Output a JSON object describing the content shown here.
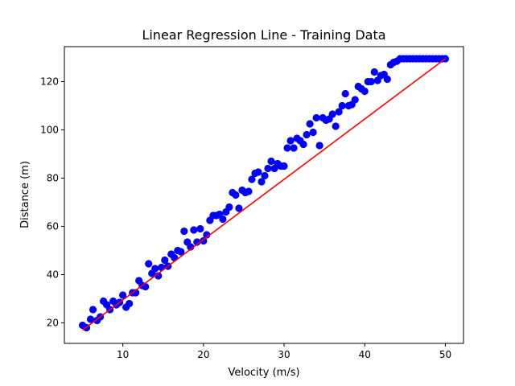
{
  "chart_data": {
    "type": "scatter",
    "title": "Linear Regression Line - Training Data",
    "xlabel": "Velocity (m/s)",
    "ylabel": "Distance (m)",
    "xlim": [
      2.75,
      52.25
    ],
    "ylim": [
      11.5,
      134.5
    ],
    "xticks": [
      10,
      20,
      30,
      40,
      50
    ],
    "yticks": [
      20,
      40,
      60,
      80,
      100,
      120
    ],
    "grid": false,
    "legend": "none",
    "colors": {
      "points": "#0000ff",
      "line": "#ff0000",
      "axes": "#000000",
      "background": "#ffffff"
    },
    "series": [
      {
        "kind": "scatter",
        "x": [
          5.0,
          5.5,
          6.0,
          6.3,
          6.8,
          7.2,
          7.6,
          8.0,
          8.4,
          8.8,
          9.2,
          9.6,
          10.0,
          10.4,
          10.8,
          11.2,
          11.6,
          12.0,
          12.4,
          12.8,
          13.2,
          13.6,
          14.0,
          14.4,
          14.8,
          15.2,
          15.6,
          16.0,
          16.4,
          16.8,
          17.2,
          17.6,
          18.0,
          18.4,
          18.8,
          19.2,
          19.6,
          20.0,
          20.4,
          20.8,
          21.2,
          21.6,
          22.0,
          22.4,
          22.8,
          23.2,
          23.6,
          24.0,
          24.4,
          24.8,
          25.2,
          25.6,
          26.0,
          26.4,
          26.8,
          27.2,
          27.6,
          28.0,
          28.4,
          28.8,
          29.2,
          29.6,
          30.0,
          30.4,
          30.8,
          31.2,
          31.6,
          32.0,
          32.4,
          32.8,
          33.2,
          33.6,
          34.0,
          34.4,
          34.8,
          35.2,
          35.6,
          36.0,
          36.4,
          36.8,
          37.2,
          37.6,
          38.0,
          38.4,
          38.8,
          39.2,
          39.6,
          40.0,
          40.4,
          40.8,
          41.2,
          41.6,
          42.0,
          42.4,
          42.8,
          43.2,
          43.6,
          44.0,
          44.4,
          44.8,
          45.2,
          45.6,
          46.0,
          46.4,
          46.8,
          47.2,
          47.6,
          48.0,
          48.4,
          48.8,
          49.2,
          49.6,
          50.0
        ],
        "y": [
          19.0,
          18.0,
          21.5,
          25.5,
          21.0,
          22.5,
          29.0,
          27.5,
          25.5,
          29.0,
          27.5,
          28.5,
          31.5,
          26.5,
          28.0,
          32.5,
          32.5,
          37.5,
          35.5,
          35.0,
          44.5,
          40.5,
          42.5,
          39.5,
          43.0,
          46.0,
          43.5,
          48.5,
          47.0,
          50.0,
          49.5,
          58.0,
          53.5,
          51.5,
          58.5,
          53.5,
          59.0,
          54.0,
          56.5,
          62.5,
          64.5,
          64.5,
          65.0,
          63.0,
          66.0,
          68.0,
          74.0,
          73.0,
          67.5,
          75.0,
          74.0,
          74.5,
          79.5,
          82.0,
          82.5,
          78.5,
          81.0,
          84.0,
          87.0,
          84.0,
          86.0,
          85.0,
          85.0,
          92.5,
          95.5,
          92.5,
          96.5,
          95.5,
          94.0,
          98.0,
          102.5,
          99.0,
          105.0,
          93.5,
          105.0,
          104.0,
          104.5,
          106.5,
          101.5,
          107.5,
          110.0,
          115.0,
          110.0,
          110.5,
          112.5,
          118.0,
          117.0,
          116.0,
          120.0,
          120.0,
          124.0,
          120.5,
          122.5,
          123.0,
          121.0,
          127.0,
          128.0,
          128.5,
          129.5,
          129.5,
          129.5,
          129.5,
          129.5,
          129.5,
          129.5,
          129.5,
          129.5,
          129.5,
          129.5,
          129.5,
          129.5,
          129.5,
          129.5
        ]
      },
      {
        "kind": "line",
        "x": [
          5.0,
          50.0
        ],
        "y": [
          17.0,
          129.5
        ]
      }
    ]
  }
}
